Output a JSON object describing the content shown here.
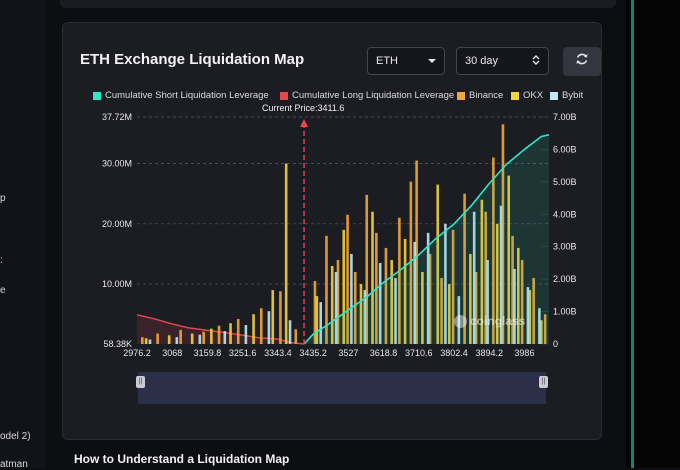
{
  "page": {
    "left_fragments": [
      "p",
      ":",
      "e",
      "odel 2)",
      "atman"
    ],
    "section_heading": "How to Understand a Liquidation Map"
  },
  "header": {
    "title": "ETH Exchange Liquidation Map",
    "symbol_select": "ETH",
    "range_select": "30 day"
  },
  "legend": [
    {
      "label": "Cumulative Short Liquidation Leverage",
      "color": "#2ee6c7"
    },
    {
      "label": "Cumulative Long Liquidation Leverage",
      "color": "#e8474b"
    },
    {
      "label": "Binance",
      "color": "#f2a93a"
    },
    {
      "label": "OKX",
      "color": "#f4d43a"
    },
    {
      "label": "Bybit",
      "color": "#bfe8f2"
    }
  ],
  "current_price_label": "Current Price:3411.6",
  "watermark": "coinglass",
  "chart_data": {
    "type": "bar",
    "title": "ETH Exchange Liquidation Map",
    "current_price": 3411.6,
    "x_ticks": [
      "2976.2",
      "3068",
      "3159.8",
      "3251.6",
      "3343.4",
      "3435.2",
      "3527",
      "3618.8",
      "3710.6",
      "3802.4",
      "3894.2",
      "3986"
    ],
    "x_range": [
      2976.2,
      4050
    ],
    "left_axis": {
      "ticks": [
        "58.38K",
        "10.00M",
        "20.00M",
        "30.00M",
        "37.72M"
      ],
      "values": [
        58380,
        10000000,
        20000000,
        30000000,
        37720000
      ],
      "range": [
        58380,
        37720000
      ]
    },
    "right_axis": {
      "ticks": [
        "0",
        "1.00B",
        "2.00B",
        "3.00B",
        "4.00B",
        "5.00B",
        "6.00B",
        "7.00B"
      ],
      "values": [
        0,
        1,
        2,
        3,
        4,
        5,
        6,
        7
      ],
      "unit": "B",
      "range": [
        0,
        7
      ]
    },
    "series": [
      {
        "name": "Cumulative Long Liquidation Leverage",
        "type": "area",
        "axis": "right",
        "x": [
          2976.2,
          3020,
          3068,
          3110,
          3159.8,
          3200,
          3251.6,
          3290,
          3343.4,
          3380,
          3411.6
        ],
        "values": [
          0.9,
          0.78,
          0.62,
          0.5,
          0.42,
          0.36,
          0.27,
          0.2,
          0.15,
          0.04,
          0.0
        ]
      },
      {
        "name": "Cumulative Short Liquidation Leverage",
        "type": "area",
        "axis": "right",
        "x": [
          3411.6,
          3435.2,
          3480,
          3527,
          3575,
          3618.8,
          3665,
          3710.6,
          3755,
          3802.4,
          3850,
          3894.2,
          3940,
          3986,
          4030,
          4050
        ],
        "values": [
          0.0,
          0.3,
          0.65,
          1.05,
          1.45,
          1.9,
          2.3,
          2.75,
          3.25,
          3.7,
          4.3,
          4.95,
          5.55,
          6.0,
          6.4,
          6.45
        ]
      },
      {
        "name": "Binance",
        "type": "bar",
        "axis": "left",
        "x": [
          2990,
          3030,
          3090,
          3150,
          3190,
          3240,
          3300,
          3350,
          3390,
          3440,
          3470,
          3500,
          3525,
          3545,
          3575,
          3600,
          3625,
          3660,
          3690,
          3705,
          3740,
          3770,
          3800,
          3830,
          3860,
          3885,
          3905,
          3930,
          3955,
          3980,
          4010,
          4040
        ],
        "values": [
          1.2,
          1.8,
          2.4,
          2.1,
          3.1,
          4.2,
          6.0,
          8.8,
          2.5,
          10.5,
          18.0,
          14.0,
          21.5,
          12.0,
          24.8,
          18.5,
          16.0,
          21.0,
          27.0,
          30.5,
          15.0,
          11.0,
          19.0,
          25.0,
          12.0,
          22.0,
          31.0,
          36.5,
          18.0,
          14.0,
          11.0,
          5.0
        ]
      },
      {
        "name": "OKX",
        "type": "bar",
        "axis": "left",
        "x": [
          3000,
          3060,
          3120,
          3170,
          3220,
          3280,
          3330,
          3365,
          3445,
          3485,
          3515,
          3560,
          3590,
          3640,
          3675,
          3720,
          3760,
          3790,
          3845,
          3875,
          3915,
          3945,
          3970,
          4000,
          4030
        ],
        "values": [
          1.0,
          1.5,
          1.8,
          2.6,
          3.5,
          5.0,
          9.0,
          30.0,
          8.0,
          13.0,
          19.0,
          10.0,
          22.0,
          14.0,
          17.5,
          12.0,
          26.5,
          10.0,
          15.0,
          24.0,
          20.0,
          28.0,
          16.0,
          9.0,
          4.0
        ]
      },
      {
        "name": "Bybit",
        "type": "bar",
        "axis": "left",
        "x": [
          3010,
          3080,
          3140,
          3205,
          3260,
          3320,
          3375,
          3455,
          3495,
          3535,
          3570,
          3610,
          3650,
          3700,
          3735,
          3780,
          3815,
          3855,
          3890,
          3925,
          3960,
          3995,
          4025
        ],
        "values": [
          0.8,
          1.2,
          1.6,
          2.2,
          3.2,
          5.5,
          4.0,
          7.0,
          12.0,
          15.0,
          9.0,
          13.5,
          11.0,
          17.0,
          18.5,
          20.0,
          8.0,
          22.0,
          14.0,
          23.0,
          12.5,
          9.5,
          6.0
        ]
      }
    ]
  }
}
